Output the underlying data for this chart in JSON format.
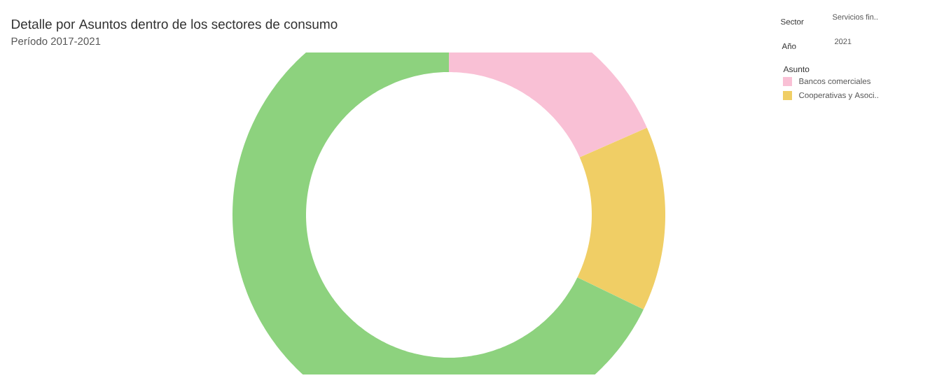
{
  "chart_data": {
    "type": "donut",
    "title": "Detalle por Asuntos dentro de los sectores de consumo",
    "subtitle": "Período 2017-2021",
    "legend_title": "Asunto",
    "legend": "top right",
    "categories": [
      "Bancos comerciales",
      "Cooperativas y Asoci..",
      null
    ],
    "values": [
      18.4,
      13.8,
      67.8
    ],
    "colors": [
      "#f9c0d5",
      "#f0ce65",
      "#8dd27e"
    ],
    "annotations": [
      "Sector",
      "Servicios fin..",
      "Año",
      "2021"
    ]
  }
}
